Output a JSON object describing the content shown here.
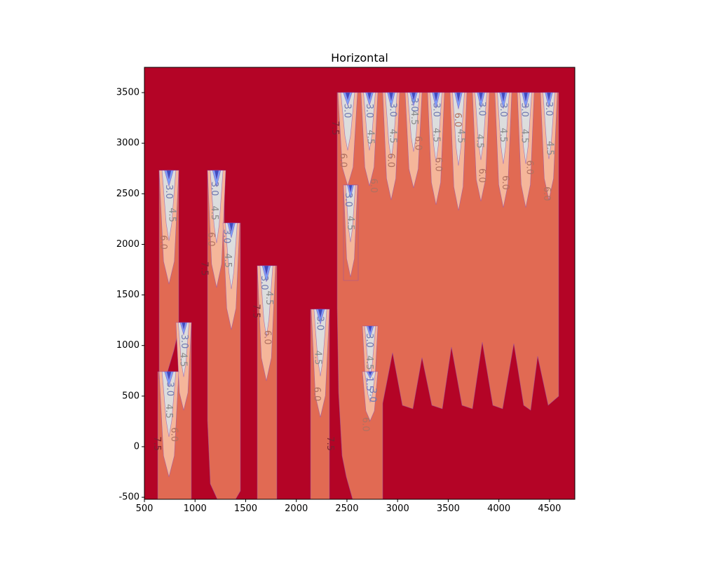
{
  "chart_data": {
    "type": "contour",
    "title": "Horizontal",
    "xlabel": "",
    "ylabel": "",
    "xlim": [
      500,
      4750
    ],
    "ylim": [
      -520,
      3750
    ],
    "x_ticks": [
      500,
      1000,
      1500,
      2000,
      2500,
      3000,
      3500,
      4000,
      4500
    ],
    "y_ticks": [
      -500,
      0,
      500,
      1000,
      1500,
      2000,
      2500,
      3000,
      3500
    ],
    "x_tick_labels": [
      "500",
      "1000",
      "1500",
      "2000",
      "2500",
      "3000",
      "3500",
      "4000",
      "4500"
    ],
    "y_tick_labels": [
      "-500",
      "0",
      "500",
      "1000",
      "1500",
      "2000",
      "2500",
      "3000",
      "3500"
    ],
    "colormap": "coolwarm",
    "levels": [
      0.0,
      1.5,
      3.0,
      4.5,
      6.0,
      7.5
    ],
    "level_colors": {
      "0.0": "#3b4cc0",
      "1.5": "#7b9ff9",
      "3.0": "#dcdddd",
      "4.5": "#f5b69a",
      "6.0": "#e16a53",
      "7.5": "#b40426"
    },
    "background_color": "#b40426",
    "contour_labels": [
      {
        "text": "3.0",
        "x": 740,
        "y": 2520,
        "level": 3.0
      },
      {
        "text": "4.5",
        "x": 770,
        "y": 2290,
        "level": 4.5
      },
      {
        "text": "6.0",
        "x": 685,
        "y": 2020,
        "level": 6.0
      },
      {
        "text": "3.0",
        "x": 1190,
        "y": 2550,
        "level": 3.0
      },
      {
        "text": "4.5",
        "x": 1190,
        "y": 2310,
        "level": 4.5
      },
      {
        "text": "6.0",
        "x": 1155,
        "y": 2050,
        "level": 6.0
      },
      {
        "text": "3.0",
        "x": 1310,
        "y": 2080,
        "level": 3.0
      },
      {
        "text": "4.5",
        "x": 1320,
        "y": 1840,
        "level": 4.5
      },
      {
        "text": "7.5",
        "x": 1090,
        "y": 1760,
        "level": 7.5
      },
      {
        "text": "3.0",
        "x": 1680,
        "y": 1620,
        "level": 3.0
      },
      {
        "text": "4.5",
        "x": 1730,
        "y": 1470,
        "level": 4.5
      },
      {
        "text": "7.5",
        "x": 1600,
        "y": 1340,
        "level": 7.5
      },
      {
        "text": "6.0",
        "x": 1710,
        "y": 1080,
        "level": 6.0
      },
      {
        "text": "3.0",
        "x": 890,
        "y": 1040,
        "level": 3.0
      },
      {
        "text": "4.5",
        "x": 880,
        "y": 860,
        "level": 4.5
      },
      {
        "text": "3.0",
        "x": 750,
        "y": 570,
        "level": 3.0
      },
      {
        "text": "4.5",
        "x": 740,
        "y": 350,
        "level": 4.5
      },
      {
        "text": "6.0",
        "x": 790,
        "y": 120,
        "level": 6.0
      },
      {
        "text": "7.5",
        "x": 620,
        "y": 30,
        "level": 7.5
      },
      {
        "text": "3.0",
        "x": 2230,
        "y": 1220,
        "level": 3.0
      },
      {
        "text": "4.5",
        "x": 2210,
        "y": 880,
        "level": 4.5
      },
      {
        "text": "6.0",
        "x": 2200,
        "y": 520,
        "level": 6.0
      },
      {
        "text": "7.5",
        "x": 2330,
        "y": 30,
        "level": 7.5
      },
      {
        "text": "3.0",
        "x": 2720,
        "y": 1050,
        "level": 3.0
      },
      {
        "text": "4.5",
        "x": 2720,
        "y": 830,
        "level": 4.5
      },
      {
        "text": "1.5",
        "x": 2720,
        "y": 620,
        "level": 1.5
      },
      {
        "text": "3.0",
        "x": 2750,
        "y": 510,
        "level": 3.0
      },
      {
        "text": "6.0",
        "x": 2680,
        "y": 220,
        "level": 6.0
      },
      {
        "text": "3.0",
        "x": 2510,
        "y": 2440,
        "level": 3.0
      },
      {
        "text": "4.5",
        "x": 2530,
        "y": 2210,
        "level": 4.5
      },
      {
        "text": "3.0",
        "x": 2500,
        "y": 3320,
        "level": 3.0
      },
      {
        "text": "6.0",
        "x": 2460,
        "y": 2830,
        "level": 6.0
      },
      {
        "text": "7.5",
        "x": 2380,
        "y": 3150,
        "level": 7.5
      },
      {
        "text": "3.0",
        "x": 2720,
        "y": 3320,
        "level": 3.0
      },
      {
        "text": "4.5",
        "x": 2730,
        "y": 3060,
        "level": 4.5
      },
      {
        "text": "6.0",
        "x": 2760,
        "y": 2580,
        "level": 6.0
      },
      {
        "text": "3.0",
        "x": 2950,
        "y": 3330,
        "level": 3.0
      },
      {
        "text": "4.5",
        "x": 2950,
        "y": 3070,
        "level": 4.5
      },
      {
        "text": "6.0",
        "x": 2930,
        "y": 2830,
        "level": 6.0
      },
      {
        "text": "3.0",
        "x": 3160,
        "y": 3380,
        "level": 3.0
      },
      {
        "text": "4.5",
        "x": 3160,
        "y": 3250,
        "level": 4.5
      },
      {
        "text": "6.0",
        "x": 3200,
        "y": 3000,
        "level": 6.0
      },
      {
        "text": "3.0",
        "x": 3380,
        "y": 3330,
        "level": 3.0
      },
      {
        "text": "4.5",
        "x": 3380,
        "y": 3080,
        "level": 4.5
      },
      {
        "text": "6.0",
        "x": 3400,
        "y": 2790,
        "level": 6.0
      },
      {
        "text": "6.0",
        "x": 3590,
        "y": 3230,
        "level": 6.0
      },
      {
        "text": "4.5",
        "x": 3620,
        "y": 3070,
        "level": 4.5
      },
      {
        "text": "3.0",
        "x": 3830,
        "y": 3340,
        "level": 3.0
      },
      {
        "text": "4.5",
        "x": 3810,
        "y": 3020,
        "level": 4.5
      },
      {
        "text": "6.0",
        "x": 3830,
        "y": 2680,
        "level": 6.0
      },
      {
        "text": "3.0",
        "x": 4040,
        "y": 3330,
        "level": 3.0
      },
      {
        "text": "4.5",
        "x": 4040,
        "y": 3080,
        "level": 4.5
      },
      {
        "text": "6.0",
        "x": 4060,
        "y": 2610,
        "level": 6.0
      },
      {
        "text": "3.0",
        "x": 4250,
        "y": 3330,
        "level": 3.0
      },
      {
        "text": "4.5",
        "x": 4250,
        "y": 3070,
        "level": 4.5
      },
      {
        "text": "6.0",
        "x": 4300,
        "y": 2760,
        "level": 6.0
      },
      {
        "text": "3.0",
        "x": 4490,
        "y": 3340,
        "level": 3.0
      },
      {
        "text": "4.5",
        "x": 4500,
        "y": 2950,
        "level": 4.5
      },
      {
        "text": "6.0",
        "x": 4470,
        "y": 2500,
        "level": 6.0
      }
    ],
    "grid": false,
    "legend": false
  }
}
